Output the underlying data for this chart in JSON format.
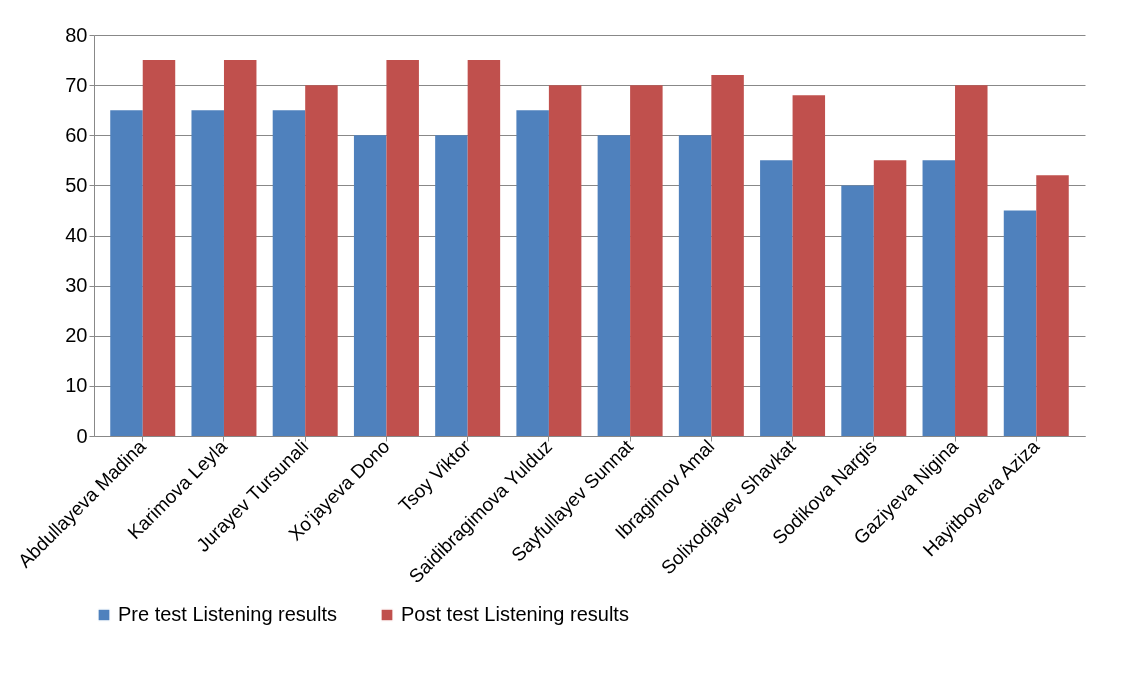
{
  "chart_data": {
    "type": "bar",
    "categories": [
      "Abdullayeva Madina",
      "Karimova Leyla",
      "Jurayev Tursunali",
      "Xo’jayeva Dono",
      "Tsoy Viktor",
      "Saidibragimova Yulduz",
      "Sayfullayev Sunnat",
      "Ibragimov Amal",
      "Solixodjayev Shavkat",
      "Sodikova Nargis",
      "Gaziyeva Nigina",
      "Hayitboyeva Aziza"
    ],
    "series": [
      {
        "name": "Pre test Listening results",
        "color": "#4f81bd",
        "values": [
          65,
          65,
          65,
          60,
          60,
          65,
          60,
          60,
          55,
          50,
          55,
          45
        ]
      },
      {
        "name": "Post test Listening results",
        "color": "#c0504d",
        "values": [
          75,
          75,
          70,
          75,
          75,
          70,
          70,
          72,
          68,
          55,
          70,
          52
        ]
      }
    ],
    "ylim": [
      0,
      80
    ],
    "yticks": [
      0,
      10,
      20,
      30,
      40,
      50,
      60,
      70,
      80
    ],
    "grid": "y",
    "legend": "bottom"
  }
}
